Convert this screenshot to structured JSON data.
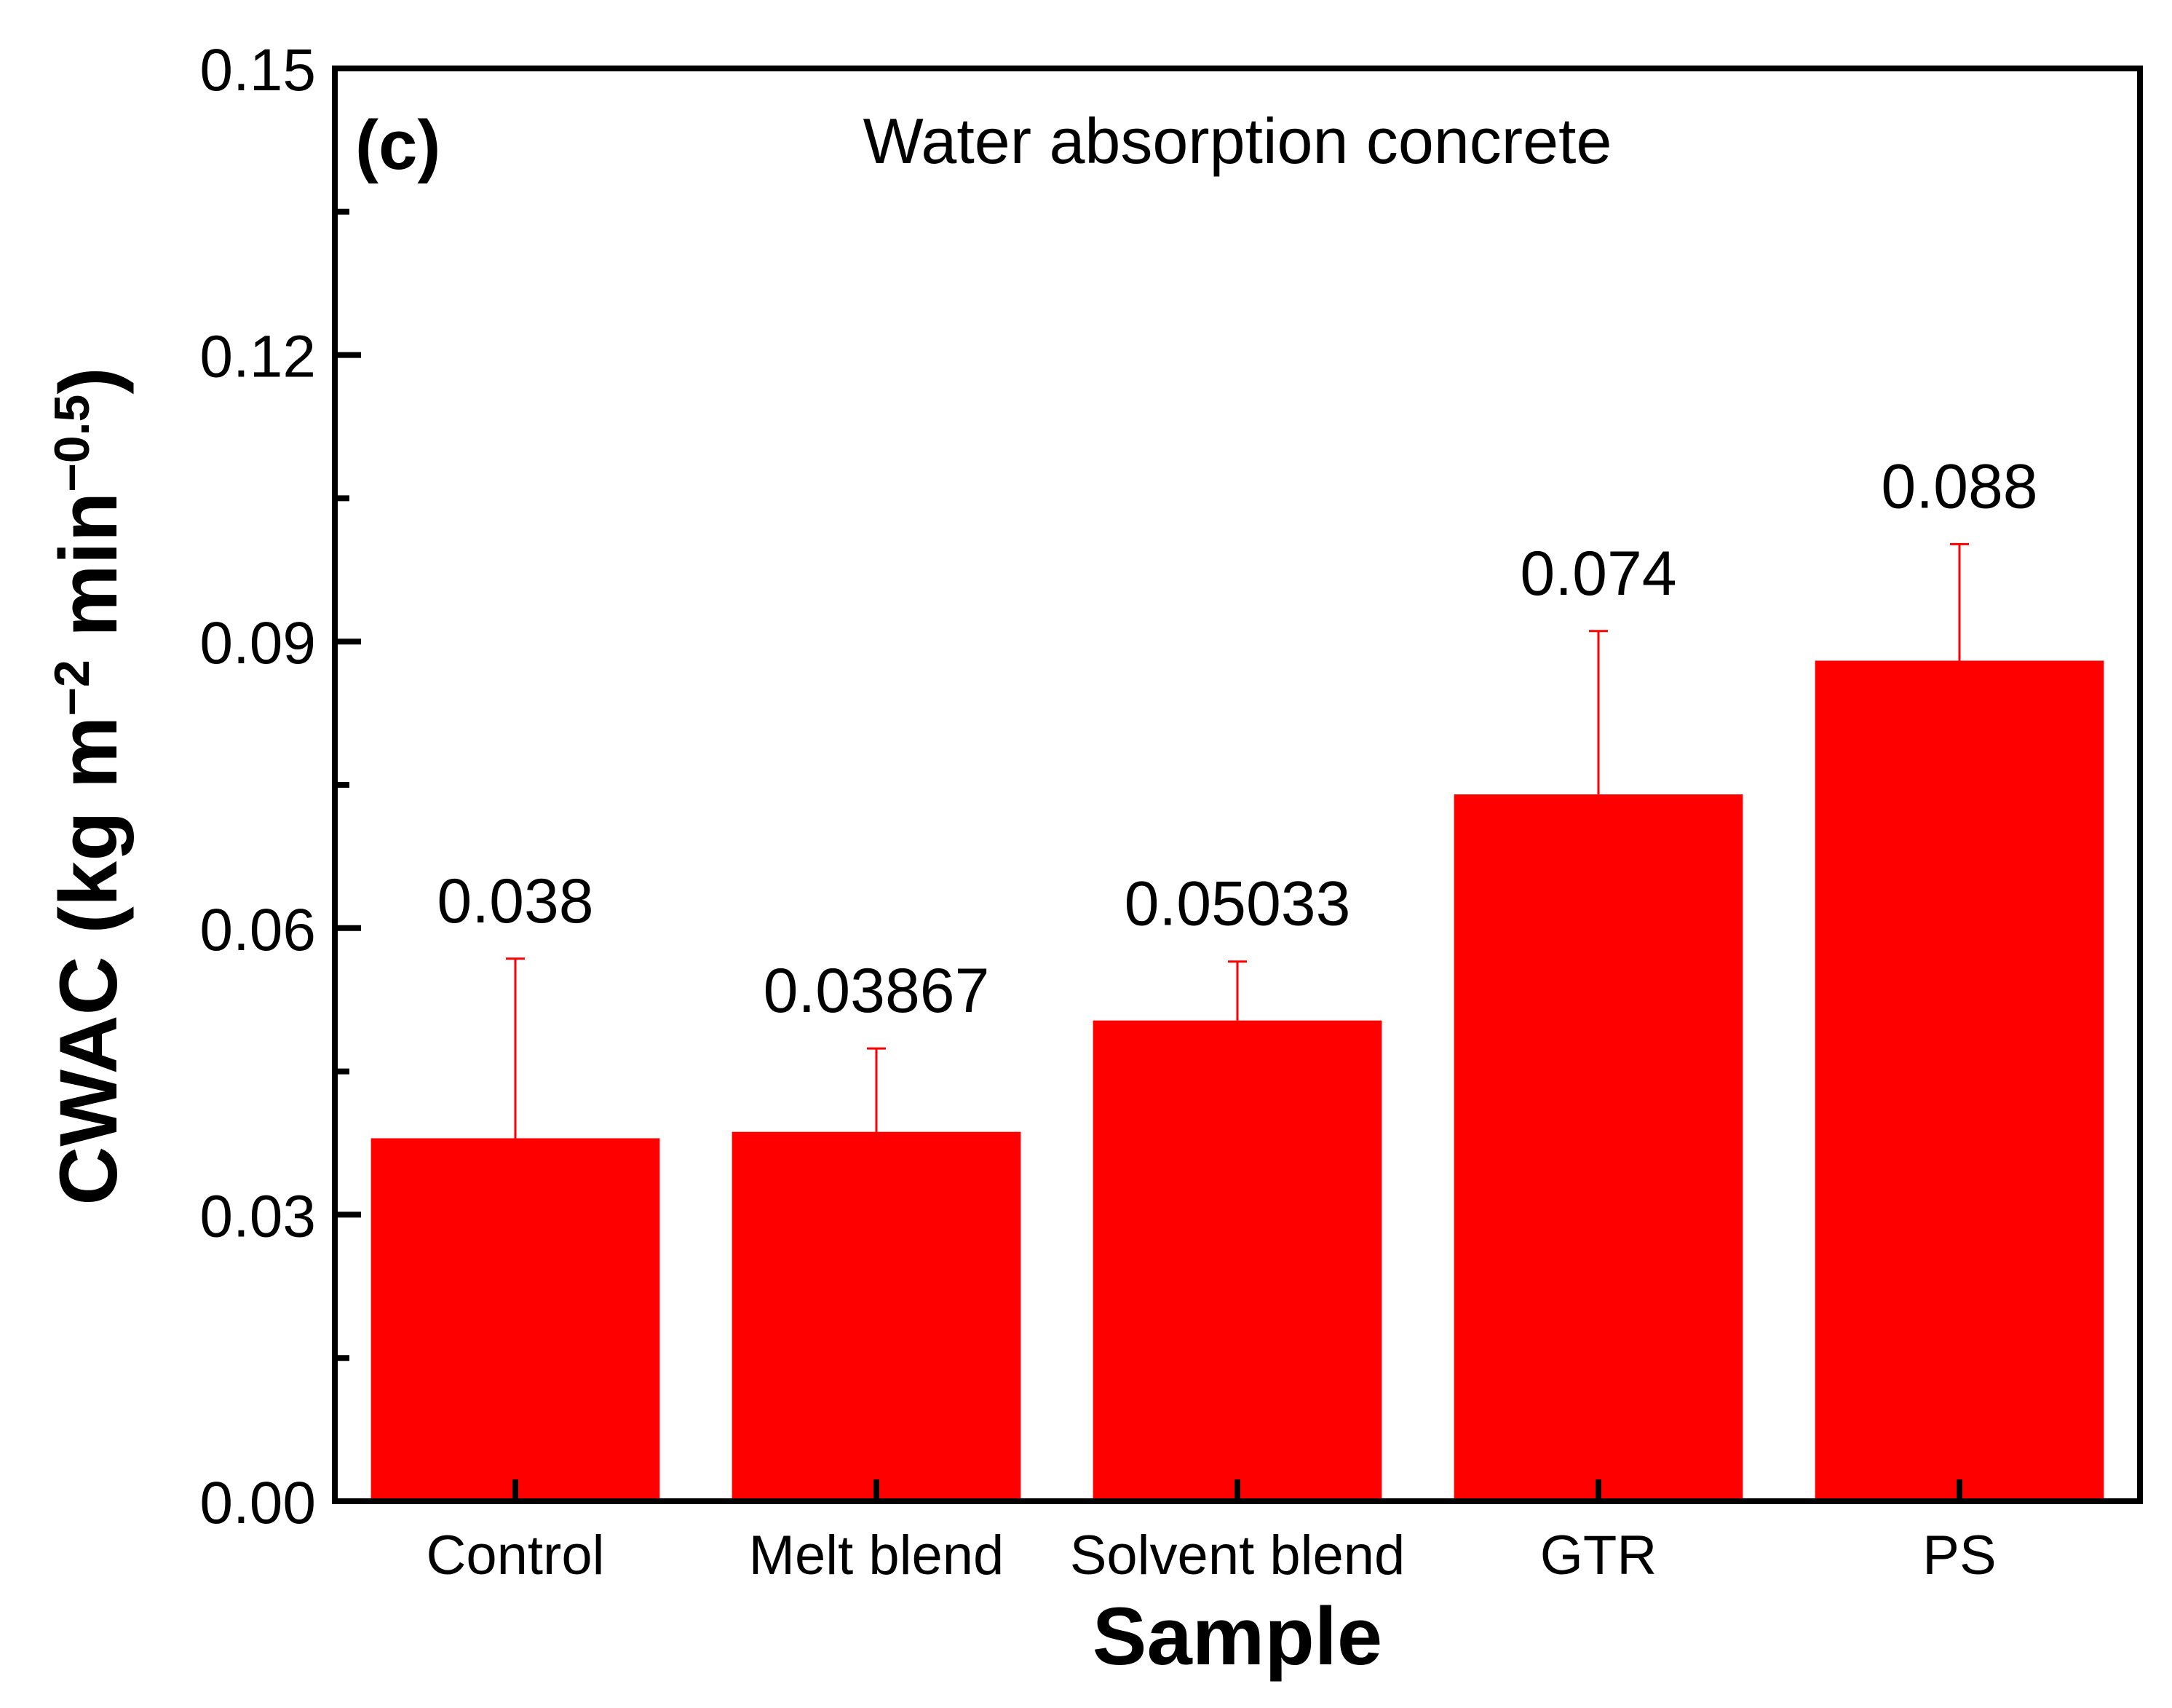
{
  "chart_data": {
    "type": "bar",
    "panel_label": "(c)",
    "title": "Water absorption concrete",
    "xlabel": "Sample",
    "ylabel": {
      "base": "CWAC (kg m",
      "sup1": "−2",
      "mid": " min",
      "sup2": "−0.5",
      "end": ")"
    },
    "ylim": [
      0,
      0.15
    ],
    "yticks": [
      {
        "value": 0.0,
        "label": "0.00"
      },
      {
        "value": 0.03,
        "label": "0.03"
      },
      {
        "value": 0.06,
        "label": "0.06"
      },
      {
        "value": 0.09,
        "label": "0.09"
      },
      {
        "value": 0.12,
        "label": "0.12"
      },
      {
        "value": 0.15,
        "label": "0.15"
      }
    ],
    "minor_yticks": [
      0.015,
      0.045,
      0.075,
      0.105,
      0.135
    ],
    "categories": [
      "Control",
      "Melt blend",
      "Solvent blend",
      "GTR",
      "PS"
    ],
    "values": [
      0.038,
      0.03867,
      0.05033,
      0.074,
      0.088
    ],
    "value_labels": [
      "0.038",
      "0.03867",
      "0.05033",
      "0.074",
      "0.088"
    ],
    "error_upper": [
      0.0568,
      0.0474,
      0.0565,
      0.0911,
      0.1002
    ],
    "bar_color": "#ff0000",
    "error_color": "#ff0000",
    "legend": "none",
    "grid": false
  }
}
